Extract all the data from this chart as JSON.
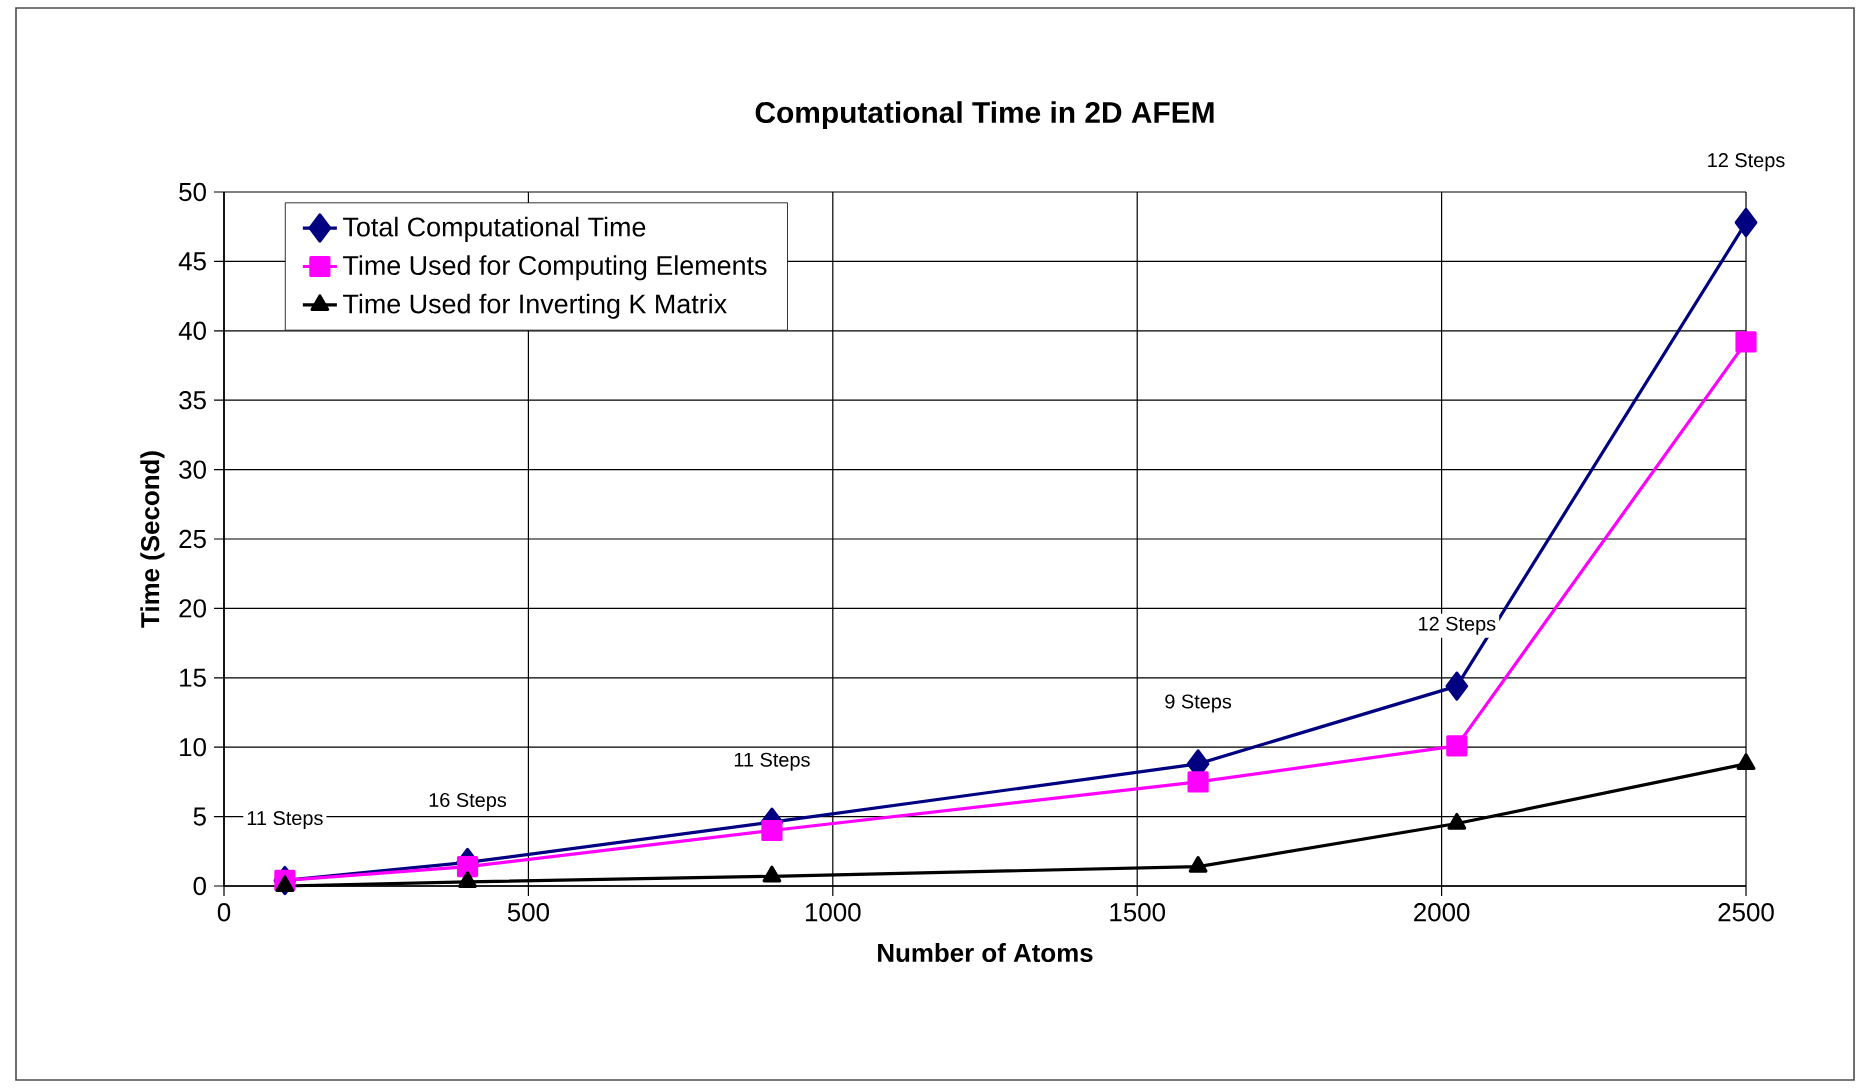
{
  "chart_data": {
    "type": "line",
    "title": "Computational Time in 2D AFEM",
    "xlabel": "Number of Atoms",
    "ylabel": "Time (Second)",
    "x": [
      100,
      400,
      900,
      1600,
      2025,
      2500
    ],
    "series": [
      {
        "name": "Total Computational Time",
        "color": "#000080",
        "marker": "diamond",
        "values": [
          0.4,
          1.7,
          4.6,
          8.8,
          14.4,
          47.8
        ]
      },
      {
        "name": "Time Used for Computing Elements",
        "color": "#ff00ff",
        "marker": "square",
        "values": [
          0.4,
          1.4,
          4.0,
          7.5,
          10.1,
          39.2
        ]
      },
      {
        "name": "Time Used for Inverting K Matrix",
        "color": "#000000",
        "marker": "triangle",
        "values": [
          0,
          0.3,
          0.7,
          1.4,
          4.5,
          8.8
        ]
      }
    ],
    "xlim": [
      0,
      2500
    ],
    "xticks": [
      0,
      500,
      1000,
      1500,
      2000,
      2500
    ],
    "ylim": [
      0,
      50
    ],
    "yticks": [
      0,
      5,
      10,
      15,
      20,
      25,
      30,
      35,
      40,
      45,
      50
    ],
    "grid": true,
    "legend": "top left",
    "line_style": "solid",
    "annotations": [
      {
        "text": "11 Steps",
        "x": 100,
        "y": 0.4
      },
      {
        "text": "16 Steps",
        "x": 400,
        "y": 1.7
      },
      {
        "text": "11 Steps",
        "x": 900,
        "y": 4.6
      },
      {
        "text": "9 Steps",
        "x": 1600,
        "y": 8.8
      },
      {
        "text": "12 Steps",
        "x": 2025,
        "y": 14.4
      },
      {
        "text": "12 Steps",
        "x": 2500,
        "y": 47.8
      }
    ]
  }
}
